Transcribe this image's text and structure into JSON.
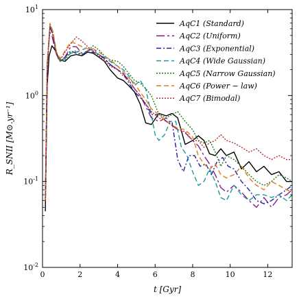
{
  "chart_data": {
    "type": "line",
    "title": "",
    "xlabel": "t [Gyr]",
    "ylabel": "R_SNII [M⊙.yr⁻¹]",
    "xlim": [
      0,
      13.3
    ],
    "ylim": [
      0.01,
      10
    ],
    "yscale": "log",
    "grid": false,
    "legend_position": "top-right",
    "x_ticks": [
      "0",
      "2",
      "4",
      "6",
      "8",
      "10",
      "12"
    ],
    "y_ticks": [
      {
        "base": "10",
        "exp": "-2",
        "value": 0.01
      },
      {
        "base": "10",
        "exp": "-1",
        "value": 0.1
      },
      {
        "base": "10",
        "exp": "0",
        "value": 1
      },
      {
        "base": "10",
        "exp": "1",
        "value": 10
      }
    ],
    "series": [
      {
        "name": "AqC1 (Standard)",
        "color": "#000000",
        "dash": "solid",
        "points": [
          [
            0.15,
            0.045
          ],
          [
            0.25,
            1.3
          ],
          [
            0.35,
            2.9
          ],
          [
            0.5,
            3.8
          ],
          [
            0.7,
            3.3
          ],
          [
            0.9,
            2.6
          ],
          [
            1.2,
            2.5
          ],
          [
            1.5,
            2.9
          ],
          [
            1.8,
            3.0
          ],
          [
            2.1,
            2.9
          ],
          [
            2.4,
            3.2
          ],
          [
            2.7,
            3.1
          ],
          [
            3.0,
            2.8
          ],
          [
            3.3,
            2.5
          ],
          [
            3.6,
            2.0
          ],
          [
            4.0,
            1.6
          ],
          [
            4.3,
            1.5
          ],
          [
            4.6,
            1.3
          ],
          [
            4.9,
            1.1
          ],
          [
            5.2,
            0.8
          ],
          [
            5.5,
            0.48
          ],
          [
            5.8,
            0.46
          ],
          [
            6.2,
            0.62
          ],
          [
            6.6,
            0.58
          ],
          [
            6.9,
            0.62
          ],
          [
            7.2,
            0.55
          ],
          [
            7.6,
            0.27
          ],
          [
            8.0,
            0.3
          ],
          [
            8.3,
            0.34
          ],
          [
            8.6,
            0.3
          ],
          [
            8.9,
            0.21
          ],
          [
            9.2,
            0.2
          ],
          [
            9.5,
            0.24
          ],
          [
            9.8,
            0.2
          ],
          [
            10.2,
            0.22
          ],
          [
            10.6,
            0.14
          ],
          [
            11.0,
            0.17
          ],
          [
            11.4,
            0.13
          ],
          [
            11.8,
            0.15
          ],
          [
            12.2,
            0.12
          ],
          [
            12.6,
            0.13
          ],
          [
            13.0,
            0.1
          ],
          [
            13.3,
            0.1
          ]
        ]
      },
      {
        "name": "AqC2 (Uniform)",
        "color": "#8b1a8b",
        "dash": "long-dash",
        "points": [
          [
            0.15,
            0.06
          ],
          [
            0.25,
            2.0
          ],
          [
            0.38,
            5.5
          ],
          [
            0.5,
            5.0
          ],
          [
            0.7,
            3.2
          ],
          [
            0.9,
            2.5
          ],
          [
            1.2,
            2.8
          ],
          [
            1.5,
            3.7
          ],
          [
            1.8,
            3.7
          ],
          [
            2.1,
            3.1
          ],
          [
            2.4,
            3.3
          ],
          [
            2.7,
            3.5
          ],
          [
            3.0,
            3.0
          ],
          [
            3.3,
            2.7
          ],
          [
            3.6,
            2.3
          ],
          [
            4.0,
            2.0
          ],
          [
            4.3,
            1.8
          ],
          [
            4.6,
            1.5
          ],
          [
            4.9,
            1.2
          ],
          [
            5.2,
            1.0
          ],
          [
            5.5,
            0.75
          ],
          [
            5.8,
            0.55
          ],
          [
            6.2,
            0.5
          ],
          [
            6.6,
            0.55
          ],
          [
            6.9,
            0.45
          ],
          [
            7.2,
            0.4
          ],
          [
            7.6,
            0.37
          ],
          [
            8.0,
            0.3
          ],
          [
            8.3,
            0.26
          ],
          [
            8.6,
            0.2
          ],
          [
            8.9,
            0.16
          ],
          [
            9.2,
            0.12
          ],
          [
            9.5,
            0.085
          ],
          [
            9.8,
            0.075
          ],
          [
            10.2,
            0.09
          ],
          [
            10.6,
            0.075
          ],
          [
            11.0,
            0.06
          ],
          [
            11.4,
            0.05
          ],
          [
            11.8,
            0.065
          ],
          [
            12.2,
            0.05
          ],
          [
            12.6,
            0.065
          ],
          [
            13.0,
            0.07
          ],
          [
            13.3,
            0.08
          ]
        ]
      },
      {
        "name": "AqC3 (Exponential)",
        "color": "#1f1f9e",
        "dash": "dash-dot",
        "points": [
          [
            0.15,
            0.06
          ],
          [
            0.25,
            2.2
          ],
          [
            0.4,
            6.3
          ],
          [
            0.55,
            5.0
          ],
          [
            0.75,
            3.0
          ],
          [
            0.95,
            2.5
          ],
          [
            1.2,
            2.8
          ],
          [
            1.5,
            3.3
          ],
          [
            1.8,
            3.1
          ],
          [
            2.1,
            3.0
          ],
          [
            2.4,
            3.2
          ],
          [
            2.7,
            3.2
          ],
          [
            3.0,
            3.0
          ],
          [
            3.3,
            2.7
          ],
          [
            3.6,
            2.3
          ],
          [
            4.0,
            2.0
          ],
          [
            4.3,
            1.8
          ],
          [
            4.6,
            1.4
          ],
          [
            4.9,
            1.1
          ],
          [
            5.2,
            0.95
          ],
          [
            5.5,
            0.8
          ],
          [
            5.8,
            0.6
          ],
          [
            6.2,
            0.6
          ],
          [
            6.6,
            0.5
          ],
          [
            6.9,
            0.5
          ],
          [
            7.2,
            0.18
          ],
          [
            7.5,
            0.13
          ],
          [
            7.8,
            0.2
          ],
          [
            8.1,
            0.2
          ],
          [
            8.4,
            0.15
          ],
          [
            8.7,
            0.16
          ],
          [
            9.0,
            0.12
          ],
          [
            9.3,
            0.17
          ],
          [
            9.6,
            0.19
          ],
          [
            9.9,
            0.15
          ],
          [
            10.2,
            0.14
          ],
          [
            10.6,
            0.1
          ],
          [
            11.0,
            0.08
          ],
          [
            11.4,
            0.06
          ],
          [
            11.8,
            0.055
          ],
          [
            12.2,
            0.06
          ],
          [
            12.6,
            0.07
          ],
          [
            13.0,
            0.08
          ],
          [
            13.3,
            0.09
          ]
        ]
      },
      {
        "name": "AqC4 (Wide Gaussian)",
        "color": "#1a9a9a",
        "dash": "dashed",
        "points": [
          [
            0.15,
            0.06
          ],
          [
            0.25,
            2.3
          ],
          [
            0.4,
            6.8
          ],
          [
            0.55,
            5.5
          ],
          [
            0.75,
            3.0
          ],
          [
            0.95,
            2.5
          ],
          [
            1.2,
            2.7
          ],
          [
            1.5,
            3.1
          ],
          [
            1.8,
            3.2
          ],
          [
            2.1,
            3.4
          ],
          [
            2.4,
            3.6
          ],
          [
            2.7,
            3.3
          ],
          [
            3.0,
            3.0
          ],
          [
            3.3,
            2.8
          ],
          [
            3.6,
            2.5
          ],
          [
            4.0,
            2.2
          ],
          [
            4.3,
            2.0
          ],
          [
            4.6,
            1.7
          ],
          [
            4.9,
            1.3
          ],
          [
            5.2,
            1.5
          ],
          [
            5.5,
            1.2
          ],
          [
            5.8,
            0.6
          ],
          [
            6.0,
            0.35
          ],
          [
            6.2,
            0.3
          ],
          [
            6.5,
            0.35
          ],
          [
            6.8,
            0.5
          ],
          [
            7.1,
            0.5
          ],
          [
            7.4,
            0.25
          ],
          [
            7.7,
            0.2
          ],
          [
            8.0,
            0.13
          ],
          [
            8.3,
            0.09
          ],
          [
            8.6,
            0.1
          ],
          [
            8.9,
            0.14
          ],
          [
            9.2,
            0.1
          ],
          [
            9.5,
            0.065
          ],
          [
            9.8,
            0.06
          ],
          [
            10.2,
            0.09
          ],
          [
            10.6,
            0.07
          ],
          [
            11.0,
            0.06
          ],
          [
            11.4,
            0.07
          ],
          [
            11.8,
            0.07
          ],
          [
            12.2,
            0.065
          ],
          [
            12.6,
            0.07
          ],
          [
            13.0,
            0.06
          ],
          [
            13.3,
            0.07
          ]
        ]
      },
      {
        "name": "AqC5 (Narrow Gaussian)",
        "color": "#1a7a1a",
        "dash": "dotted",
        "points": [
          [
            0.15,
            0.06
          ],
          [
            0.25,
            2.3
          ],
          [
            0.4,
            6.7
          ],
          [
            0.55,
            5.2
          ],
          [
            0.75,
            3.0
          ],
          [
            0.95,
            2.5
          ],
          [
            1.2,
            2.6
          ],
          [
            1.5,
            3.2
          ],
          [
            1.8,
            3.3
          ],
          [
            2.1,
            3.0
          ],
          [
            2.4,
            3.3
          ],
          [
            2.7,
            3.8
          ],
          [
            3.0,
            3.4
          ],
          [
            3.3,
            2.9
          ],
          [
            3.6,
            2.6
          ],
          [
            4.0,
            2.5
          ],
          [
            4.3,
            2.2
          ],
          [
            4.6,
            1.8
          ],
          [
            4.9,
            1.5
          ],
          [
            5.2,
            1.4
          ],
          [
            5.5,
            1.2
          ],
          [
            5.8,
            1.0
          ],
          [
            6.2,
            0.6
          ],
          [
            6.6,
            0.55
          ],
          [
            6.9,
            0.6
          ],
          [
            7.2,
            0.65
          ],
          [
            7.6,
            0.5
          ],
          [
            8.0,
            0.4
          ],
          [
            8.3,
            0.3
          ],
          [
            8.6,
            0.28
          ],
          [
            8.9,
            0.3
          ],
          [
            9.2,
            0.22
          ],
          [
            9.5,
            0.15
          ],
          [
            9.8,
            0.2
          ],
          [
            10.2,
            0.18
          ],
          [
            10.6,
            0.15
          ],
          [
            11.0,
            0.12
          ],
          [
            11.4,
            0.1
          ],
          [
            11.8,
            0.09
          ],
          [
            12.2,
            0.1
          ],
          [
            12.6,
            0.12
          ],
          [
            13.0,
            0.11
          ],
          [
            13.3,
            0.1
          ]
        ]
      },
      {
        "name": "AqC6 (Power − law)",
        "color": "#e07b20",
        "dash": "dashed",
        "points": [
          [
            0.15,
            0.06
          ],
          [
            0.25,
            2.4
          ],
          [
            0.4,
            6.9
          ],
          [
            0.55,
            5.6
          ],
          [
            0.75,
            3.2
          ],
          [
            0.95,
            2.7
          ],
          [
            1.2,
            3.3
          ],
          [
            1.5,
            4.2
          ],
          [
            1.8,
            4.0
          ],
          [
            2.1,
            3.7
          ],
          [
            2.4,
            3.5
          ],
          [
            2.7,
            3.5
          ],
          [
            3.0,
            3.2
          ],
          [
            3.3,
            2.9
          ],
          [
            3.6,
            2.6
          ],
          [
            4.0,
            2.2
          ],
          [
            4.3,
            1.9
          ],
          [
            4.6,
            1.6
          ],
          [
            4.9,
            1.4
          ],
          [
            5.2,
            1.1
          ],
          [
            5.5,
            0.9
          ],
          [
            5.8,
            0.7
          ],
          [
            6.2,
            0.6
          ],
          [
            6.6,
            0.5
          ],
          [
            6.9,
            0.45
          ],
          [
            7.2,
            0.42
          ],
          [
            7.6,
            0.4
          ],
          [
            8.0,
            0.33
          ],
          [
            8.3,
            0.2
          ],
          [
            8.6,
            0.16
          ],
          [
            8.9,
            0.14
          ],
          [
            9.2,
            0.16
          ],
          [
            9.5,
            0.12
          ],
          [
            9.8,
            0.11
          ],
          [
            10.2,
            0.12
          ],
          [
            10.6,
            0.15
          ],
          [
            11.0,
            0.11
          ],
          [
            11.4,
            0.09
          ],
          [
            11.8,
            0.08
          ],
          [
            12.2,
            0.1
          ],
          [
            12.6,
            0.09
          ],
          [
            13.0,
            0.08
          ],
          [
            13.3,
            0.075
          ]
        ]
      },
      {
        "name": "AqC7 (Bimodal)",
        "color": "#b5282e",
        "dash": "dotted",
        "points": [
          [
            0.15,
            0.06
          ],
          [
            0.25,
            2.2
          ],
          [
            0.4,
            6.5
          ],
          [
            0.55,
            5.0
          ],
          [
            0.75,
            3.0
          ],
          [
            0.95,
            2.6
          ],
          [
            1.2,
            3.2
          ],
          [
            1.5,
            4.0
          ],
          [
            1.8,
            4.8
          ],
          [
            2.1,
            4.3
          ],
          [
            2.4,
            3.7
          ],
          [
            2.7,
            3.3
          ],
          [
            3.0,
            2.9
          ],
          [
            3.3,
            2.6
          ],
          [
            3.6,
            2.2
          ],
          [
            4.0,
            2.0
          ],
          [
            4.3,
            1.7
          ],
          [
            4.6,
            1.5
          ],
          [
            4.9,
            1.2
          ],
          [
            5.2,
            1.0
          ],
          [
            5.5,
            0.8
          ],
          [
            5.8,
            0.65
          ],
          [
            6.2,
            0.55
          ],
          [
            6.6,
            0.5
          ],
          [
            6.9,
            0.45
          ],
          [
            7.2,
            0.4
          ],
          [
            7.6,
            0.38
          ],
          [
            8.0,
            0.3
          ],
          [
            8.3,
            0.3
          ],
          [
            8.6,
            0.25
          ],
          [
            8.9,
            0.28
          ],
          [
            9.2,
            0.3
          ],
          [
            9.5,
            0.35
          ],
          [
            9.8,
            0.3
          ],
          [
            10.2,
            0.28
          ],
          [
            10.6,
            0.25
          ],
          [
            11.0,
            0.22
          ],
          [
            11.4,
            0.24
          ],
          [
            11.8,
            0.2
          ],
          [
            12.2,
            0.18
          ],
          [
            12.6,
            0.2
          ],
          [
            13.0,
            0.18
          ],
          [
            13.3,
            0.18
          ]
        ]
      }
    ]
  }
}
